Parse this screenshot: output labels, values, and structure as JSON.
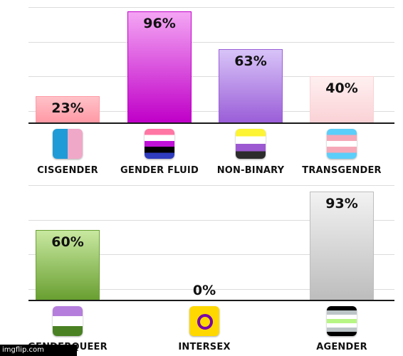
{
  "watermark": "imgflip.com",
  "chart_data": [
    {
      "type": "bar",
      "categories": [
        "CISGENDER",
        "GENDER FLUID",
        "NON-BINARY",
        "TRANSGENDER"
      ],
      "values": [
        23,
        96,
        63,
        40
      ],
      "value_labels": [
        "23%",
        "96%",
        "63%",
        "40%"
      ],
      "flags": [
        "cisgender-flag-icon",
        "genderfluid-flag-icon",
        "nonbinary-flag-icon",
        "transgender-flag-icon"
      ],
      "colors": [
        [
          "#ffc2c8",
          "#ff9aa6"
        ],
        [
          "#f4a6f4",
          "#c000c8"
        ],
        [
          "#d8c4f8",
          "#9b5fd8"
        ],
        [
          "#fff0f0",
          "#fad2d6"
        ]
      ],
      "ylim": [
        0,
        100
      ],
      "grid": true
    },
    {
      "type": "bar",
      "categories": [
        "GENDERQUEER",
        "INTERSEX",
        "AGENDER"
      ],
      "values": [
        60,
        0,
        93
      ],
      "value_labels": [
        "60%",
        "0%",
        "93%"
      ],
      "flags": [
        "genderqueer-flag-icon",
        "intersex-flag-icon",
        "agender-flag-icon"
      ],
      "colors": [
        [
          "#c8e8a0",
          "#6aa032"
        ],
        [
          "#ffd700",
          "#ffd700"
        ],
        [
          "#f2f2f2",
          "#bdbdbd"
        ]
      ],
      "ylim": [
        0,
        100
      ],
      "grid": true
    }
  ]
}
